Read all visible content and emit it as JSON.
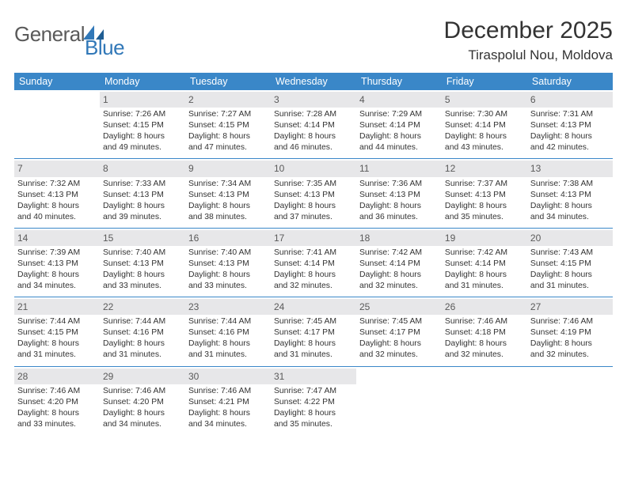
{
  "colors": {
    "header_bg": "#3a87c8",
    "header_text": "#ffffff",
    "daynum_bg": "#e7e7e9",
    "daynum_text": "#5a5a5a",
    "body_text": "#333333",
    "rule": "#3a87c8",
    "logo_gray": "#5a5a5a",
    "logo_blue": "#3178b8"
  },
  "logo": {
    "general": "General",
    "blue": "Blue"
  },
  "title": "December 2025",
  "location": "Tiraspolul Nou, Moldova",
  "dow": [
    "Sunday",
    "Monday",
    "Tuesday",
    "Wednesday",
    "Thursday",
    "Friday",
    "Saturday"
  ],
  "weeks": [
    [
      null,
      {
        "n": "1",
        "sr": "Sunrise: 7:26 AM",
        "ss": "Sunset: 4:15 PM",
        "d1": "Daylight: 8 hours",
        "d2": "and 49 minutes."
      },
      {
        "n": "2",
        "sr": "Sunrise: 7:27 AM",
        "ss": "Sunset: 4:15 PM",
        "d1": "Daylight: 8 hours",
        "d2": "and 47 minutes."
      },
      {
        "n": "3",
        "sr": "Sunrise: 7:28 AM",
        "ss": "Sunset: 4:14 PM",
        "d1": "Daylight: 8 hours",
        "d2": "and 46 minutes."
      },
      {
        "n": "4",
        "sr": "Sunrise: 7:29 AM",
        "ss": "Sunset: 4:14 PM",
        "d1": "Daylight: 8 hours",
        "d2": "and 44 minutes."
      },
      {
        "n": "5",
        "sr": "Sunrise: 7:30 AM",
        "ss": "Sunset: 4:14 PM",
        "d1": "Daylight: 8 hours",
        "d2": "and 43 minutes."
      },
      {
        "n": "6",
        "sr": "Sunrise: 7:31 AM",
        "ss": "Sunset: 4:13 PM",
        "d1": "Daylight: 8 hours",
        "d2": "and 42 minutes."
      }
    ],
    [
      {
        "n": "7",
        "sr": "Sunrise: 7:32 AM",
        "ss": "Sunset: 4:13 PM",
        "d1": "Daylight: 8 hours",
        "d2": "and 40 minutes."
      },
      {
        "n": "8",
        "sr": "Sunrise: 7:33 AM",
        "ss": "Sunset: 4:13 PM",
        "d1": "Daylight: 8 hours",
        "d2": "and 39 minutes."
      },
      {
        "n": "9",
        "sr": "Sunrise: 7:34 AM",
        "ss": "Sunset: 4:13 PM",
        "d1": "Daylight: 8 hours",
        "d2": "and 38 minutes."
      },
      {
        "n": "10",
        "sr": "Sunrise: 7:35 AM",
        "ss": "Sunset: 4:13 PM",
        "d1": "Daylight: 8 hours",
        "d2": "and 37 minutes."
      },
      {
        "n": "11",
        "sr": "Sunrise: 7:36 AM",
        "ss": "Sunset: 4:13 PM",
        "d1": "Daylight: 8 hours",
        "d2": "and 36 minutes."
      },
      {
        "n": "12",
        "sr": "Sunrise: 7:37 AM",
        "ss": "Sunset: 4:13 PM",
        "d1": "Daylight: 8 hours",
        "d2": "and 35 minutes."
      },
      {
        "n": "13",
        "sr": "Sunrise: 7:38 AM",
        "ss": "Sunset: 4:13 PM",
        "d1": "Daylight: 8 hours",
        "d2": "and 34 minutes."
      }
    ],
    [
      {
        "n": "14",
        "sr": "Sunrise: 7:39 AM",
        "ss": "Sunset: 4:13 PM",
        "d1": "Daylight: 8 hours",
        "d2": "and 34 minutes."
      },
      {
        "n": "15",
        "sr": "Sunrise: 7:40 AM",
        "ss": "Sunset: 4:13 PM",
        "d1": "Daylight: 8 hours",
        "d2": "and 33 minutes."
      },
      {
        "n": "16",
        "sr": "Sunrise: 7:40 AM",
        "ss": "Sunset: 4:13 PM",
        "d1": "Daylight: 8 hours",
        "d2": "and 33 minutes."
      },
      {
        "n": "17",
        "sr": "Sunrise: 7:41 AM",
        "ss": "Sunset: 4:14 PM",
        "d1": "Daylight: 8 hours",
        "d2": "and 32 minutes."
      },
      {
        "n": "18",
        "sr": "Sunrise: 7:42 AM",
        "ss": "Sunset: 4:14 PM",
        "d1": "Daylight: 8 hours",
        "d2": "and 32 minutes."
      },
      {
        "n": "19",
        "sr": "Sunrise: 7:42 AM",
        "ss": "Sunset: 4:14 PM",
        "d1": "Daylight: 8 hours",
        "d2": "and 31 minutes."
      },
      {
        "n": "20",
        "sr": "Sunrise: 7:43 AM",
        "ss": "Sunset: 4:15 PM",
        "d1": "Daylight: 8 hours",
        "d2": "and 31 minutes."
      }
    ],
    [
      {
        "n": "21",
        "sr": "Sunrise: 7:44 AM",
        "ss": "Sunset: 4:15 PM",
        "d1": "Daylight: 8 hours",
        "d2": "and 31 minutes."
      },
      {
        "n": "22",
        "sr": "Sunrise: 7:44 AM",
        "ss": "Sunset: 4:16 PM",
        "d1": "Daylight: 8 hours",
        "d2": "and 31 minutes."
      },
      {
        "n": "23",
        "sr": "Sunrise: 7:44 AM",
        "ss": "Sunset: 4:16 PM",
        "d1": "Daylight: 8 hours",
        "d2": "and 31 minutes."
      },
      {
        "n": "24",
        "sr": "Sunrise: 7:45 AM",
        "ss": "Sunset: 4:17 PM",
        "d1": "Daylight: 8 hours",
        "d2": "and 31 minutes."
      },
      {
        "n": "25",
        "sr": "Sunrise: 7:45 AM",
        "ss": "Sunset: 4:17 PM",
        "d1": "Daylight: 8 hours",
        "d2": "and 32 minutes."
      },
      {
        "n": "26",
        "sr": "Sunrise: 7:46 AM",
        "ss": "Sunset: 4:18 PM",
        "d1": "Daylight: 8 hours",
        "d2": "and 32 minutes."
      },
      {
        "n": "27",
        "sr": "Sunrise: 7:46 AM",
        "ss": "Sunset: 4:19 PM",
        "d1": "Daylight: 8 hours",
        "d2": "and 32 minutes."
      }
    ],
    [
      {
        "n": "28",
        "sr": "Sunrise: 7:46 AM",
        "ss": "Sunset: 4:20 PM",
        "d1": "Daylight: 8 hours",
        "d2": "and 33 minutes."
      },
      {
        "n": "29",
        "sr": "Sunrise: 7:46 AM",
        "ss": "Sunset: 4:20 PM",
        "d1": "Daylight: 8 hours",
        "d2": "and 34 minutes."
      },
      {
        "n": "30",
        "sr": "Sunrise: 7:46 AM",
        "ss": "Sunset: 4:21 PM",
        "d1": "Daylight: 8 hours",
        "d2": "and 34 minutes."
      },
      {
        "n": "31",
        "sr": "Sunrise: 7:47 AM",
        "ss": "Sunset: 4:22 PM",
        "d1": "Daylight: 8 hours",
        "d2": "and 35 minutes."
      },
      null,
      null,
      null
    ]
  ]
}
